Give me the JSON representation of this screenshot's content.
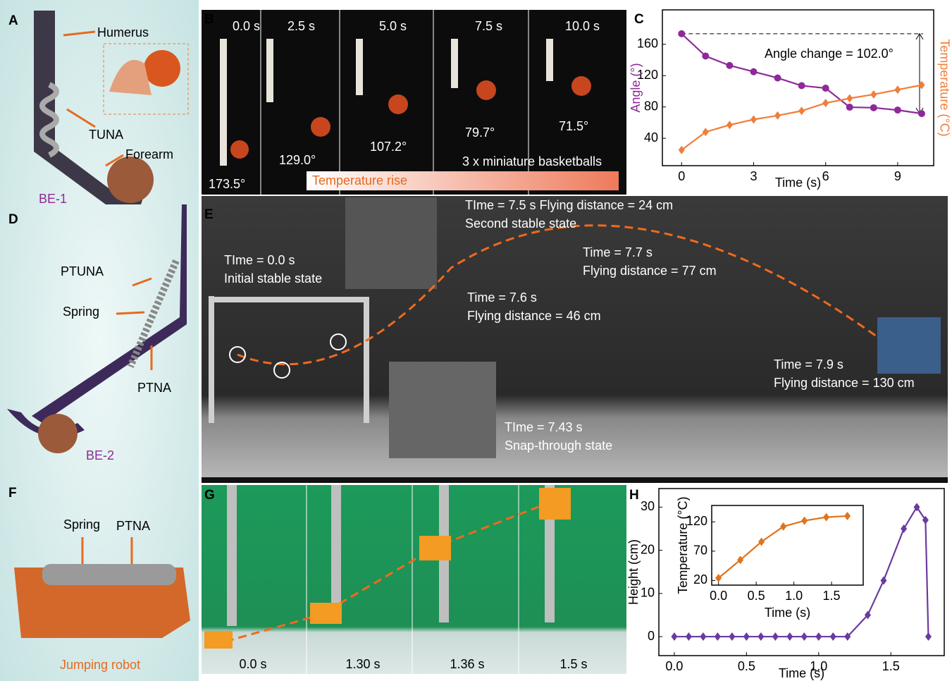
{
  "panel_labels": [
    "A",
    "B",
    "C",
    "D",
    "E",
    "F",
    "G",
    "H"
  ],
  "panel_a": {
    "labels": [
      "Humerus",
      "TUNA",
      "Forearm",
      "BE-1"
    ]
  },
  "panel_b": {
    "times": [
      "0.0 s",
      "2.5 s",
      "5.0 s",
      "7.5 s",
      "10.0 s"
    ],
    "angles": [
      "173.5°",
      "129.0°",
      "107.2°",
      "79.7°",
      "71.5°"
    ],
    "note": "3 x miniature basketballs",
    "banner": "Temperature rise"
  },
  "panel_d": {
    "labels": [
      "PTUNA",
      "Spring",
      "PTNA",
      "BE-2"
    ]
  },
  "panel_e": {
    "annotations": [
      [
        "TIme = 7.5 s Flying distance = 24 cm",
        "Second stable state"
      ],
      [
        "TIme = 0.0 s",
        "Initial stable state"
      ],
      [
        "Time = 7.7 s",
        "Flying distance = 77 cm"
      ],
      [
        "Time = 7.6 s",
        "Flying distance = 46 cm"
      ],
      [
        "Time = 7.9 s",
        "Flying distance = 130 cm"
      ],
      [
        "TIme = 7.43 s",
        "Snap-through state"
      ]
    ]
  },
  "panel_f": {
    "labels": [
      "Spring",
      "PTNA",
      "Jumping robot"
    ]
  },
  "panel_g": {
    "times": [
      "0.0 s",
      "1.30 s",
      "1.36 s",
      "1.5 s"
    ]
  },
  "chart_data": [
    {
      "type": "line",
      "xlabel": "Time (s)",
      "ylabel": "Angle (°)",
      "y2label": "Temperature (°C)",
      "annotation": "Angle change = 102.0°",
      "x": [
        0,
        1,
        2,
        3,
        4,
        5,
        6,
        7,
        8,
        9,
        10
      ],
      "series": [
        {
          "color": "#8e2a98",
          "marker": "circle",
          "values": [
            173.5,
            145,
            133,
            125,
            117,
            107.2,
            104,
            79.7,
            79,
            76,
            71.5
          ]
        },
        {
          "color": "#f07e3a",
          "marker": "diamond",
          "axis": "y2",
          "values": [
            25,
            48,
            57,
            64,
            69,
            75,
            85,
            91,
            96,
            102,
            108
          ]
        }
      ],
      "xlim": [
        -0.8,
        10.5
      ],
      "xticks": [
        0,
        3,
        6,
        9
      ],
      "ylim": [
        5,
        204
      ],
      "yticks": [
        40,
        80,
        120,
        160
      ],
      "y2lim": [
        5,
        204
      ]
    },
    {
      "type": "line",
      "xlabel": "Time (s)",
      "ylabel": "Height (cm)",
      "x": [
        0,
        0.1,
        0.2,
        0.3,
        0.4,
        0.5,
        0.6,
        0.7,
        0.8,
        0.9,
        1.0,
        1.1,
        1.2,
        1.34,
        1.45,
        1.59,
        1.68,
        1.74,
        1.76
      ],
      "series": [
        {
          "color": "#6a3b9e",
          "marker": "diamond",
          "values": [
            0,
            0,
            0,
            0,
            0,
            0,
            0,
            0,
            0,
            0,
            0,
            0,
            0,
            5,
            13,
            25,
            30,
            27,
            0
          ]
        }
      ],
      "xlim": [
        -0.107,
        1.87
      ],
      "xticks": [
        {
          "value": 0,
          "label": "0.0"
        },
        0.5,
        {
          "value": 1,
          "label": "1.0"
        },
        1.5
      ],
      "ylim": [
        -4.4,
        34.3
      ],
      "yticks": [
        0,
        10,
        20,
        30
      ]
    },
    {
      "type": "line",
      "xlabel": "Time (s)",
      "ylabel": "Temperature (°C)",
      "x": [
        0,
        0.29,
        0.57,
        0.86,
        1.14,
        1.43,
        1.71
      ],
      "series": [
        {
          "color": "#e0741c",
          "marker": "diamond",
          "values": [
            24,
            55,
            86,
            112,
            122,
            128,
            130
          ]
        }
      ],
      "xlim": [
        -0.09,
        1.92
      ],
      "xticks": [
        {
          "value": 0,
          "label": "0.0"
        },
        0.5,
        {
          "value": 1,
          "label": "1.0"
        },
        1.5
      ],
      "ylim": [
        12,
        148
      ],
      "yticks": [
        20,
        70,
        120
      ]
    }
  ]
}
